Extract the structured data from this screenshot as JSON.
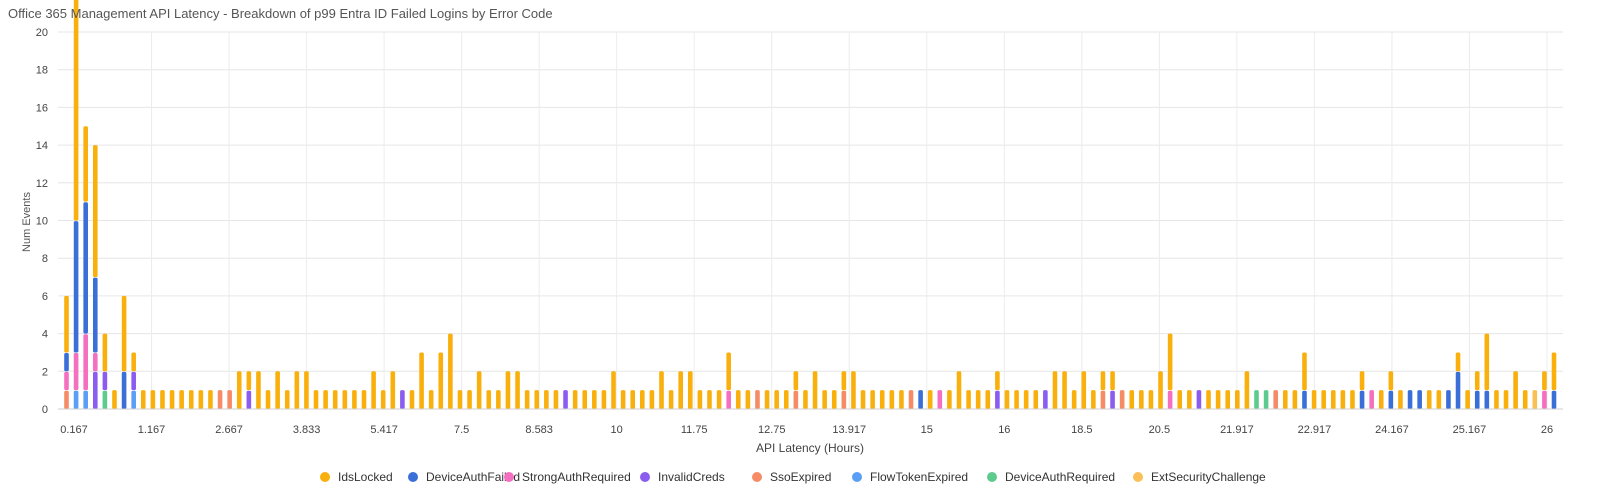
{
  "chart_data": {
    "type": "bar",
    "stacked": true,
    "title": "Office 365 Management API Latency - Breakdown of p99 Entra ID Failed Logins by Error Code",
    "xlabel": "API Latency (Hours)",
    "ylabel": "Num Events",
    "ylim": [
      0,
      20
    ],
    "yticks": [
      0,
      2,
      4,
      6,
      8,
      10,
      12,
      14,
      16,
      18,
      20
    ],
    "xtick_labels": [
      "0.167",
      "1.167",
      "2.667",
      "3.833",
      "5.417",
      "7.5",
      "8.583",
      "10",
      "11.75",
      "12.75",
      "13.917",
      "15",
      "16",
      "18.5",
      "20.5",
      "21.917",
      "22.917",
      "24.167",
      "25.167",
      "26"
    ],
    "grid": true,
    "legend_position": "bottom",
    "series": [
      {
        "name": "IdsLocked",
        "color": "#F9B00C"
      },
      {
        "name": "DeviceAuthFailed",
        "color": "#3A6FD8"
      },
      {
        "name": "StrongAuthRequired",
        "color": "#F56FC0"
      },
      {
        "name": "InvalidCreds",
        "color": "#8A5CF0"
      },
      {
        "name": "SsoExpired",
        "color": "#F58C66"
      },
      {
        "name": "FlowTokenExpired",
        "color": "#5A9EF5"
      },
      {
        "name": "DeviceAuthRequired",
        "color": "#5DCB8E"
      },
      {
        "name": "ExtSecurityChallenge",
        "color": "#FBBF58"
      }
    ],
    "bars": [
      [
        3,
        1,
        1,
        0,
        1,
        0,
        0,
        0
      ],
      [
        12,
        7,
        2,
        0,
        0,
        1,
        0,
        0
      ],
      [
        4,
        7,
        3,
        0,
        0,
        1,
        0,
        0
      ],
      [
        7,
        4,
        1,
        2,
        0,
        0,
        0,
        0
      ],
      [
        2,
        0,
        0,
        1,
        0,
        0,
        1,
        0
      ],
      [
        1,
        0,
        0,
        0,
        0,
        0,
        0,
        0
      ],
      [
        4,
        2,
        0,
        0,
        0,
        0,
        0,
        0
      ],
      [
        1,
        0,
        0,
        1,
        0,
        1,
        0,
        0
      ],
      [
        1,
        0,
        0,
        0,
        0,
        0,
        0,
        0
      ],
      [
        1,
        0,
        0,
        0,
        0,
        0,
        0,
        0
      ],
      [
        1,
        0,
        0,
        0,
        0,
        0,
        0,
        0
      ],
      [
        1,
        0,
        0,
        0,
        0,
        0,
        0,
        0
      ],
      [
        1,
        0,
        0,
        0,
        0,
        0,
        0,
        0
      ],
      [
        1,
        0,
        0,
        0,
        0,
        0,
        0,
        0
      ],
      [
        1,
        0,
        0,
        0,
        0,
        0,
        0,
        0
      ],
      [
        1,
        0,
        0,
        0,
        0,
        0,
        0,
        0
      ],
      [
        0,
        0,
        0,
        0,
        1,
        0,
        0,
        0
      ],
      [
        0,
        0,
        0,
        0,
        1,
        0,
        0,
        0
      ],
      [
        2,
        0,
        0,
        0,
        0,
        0,
        0,
        0
      ],
      [
        1,
        0,
        0,
        1,
        0,
        0,
        0,
        0
      ],
      [
        2,
        0,
        0,
        0,
        0,
        0,
        0,
        0
      ],
      [
        1,
        0,
        0,
        0,
        0,
        0,
        0,
        0
      ],
      [
        2,
        0,
        0,
        0,
        0,
        0,
        0,
        0
      ],
      [
        1,
        0,
        0,
        0,
        0,
        0,
        0,
        0
      ],
      [
        2,
        0,
        0,
        0,
        0,
        0,
        0,
        0
      ],
      [
        2,
        0,
        0,
        0,
        0,
        0,
        0,
        0
      ],
      [
        1,
        0,
        0,
        0,
        0,
        0,
        0,
        0
      ],
      [
        1,
        0,
        0,
        0,
        0,
        0,
        0,
        0
      ],
      [
        1,
        0,
        0,
        0,
        0,
        0,
        0,
        0
      ],
      [
        1,
        0,
        0,
        0,
        0,
        0,
        0,
        0
      ],
      [
        1,
        0,
        0,
        0,
        0,
        0,
        0,
        0
      ],
      [
        1,
        0,
        0,
        0,
        0,
        0,
        0,
        0
      ],
      [
        2,
        0,
        0,
        0,
        0,
        0,
        0,
        0
      ],
      [
        1,
        0,
        0,
        0,
        0,
        0,
        0,
        0
      ],
      [
        2,
        0,
        0,
        0,
        0,
        0,
        0,
        0
      ],
      [
        0,
        0,
        0,
        1,
        0,
        0,
        0,
        0
      ],
      [
        1,
        0,
        0,
        0,
        0,
        0,
        0,
        0
      ],
      [
        3,
        0,
        0,
        0,
        0,
        0,
        0,
        0
      ],
      [
        1,
        0,
        0,
        0,
        0,
        0,
        0,
        0
      ],
      [
        3,
        0,
        0,
        0,
        0,
        0,
        0,
        0
      ],
      [
        4,
        0,
        0,
        0,
        0,
        0,
        0,
        0
      ],
      [
        1,
        0,
        0,
        0,
        0,
        0,
        0,
        0
      ],
      [
        1,
        0,
        0,
        0,
        0,
        0,
        0,
        0
      ],
      [
        2,
        0,
        0,
        0,
        0,
        0,
        0,
        0
      ],
      [
        1,
        0,
        0,
        0,
        0,
        0,
        0,
        0
      ],
      [
        1,
        0,
        0,
        0,
        0,
        0,
        0,
        0
      ],
      [
        2,
        0,
        0,
        0,
        0,
        0,
        0,
        0
      ],
      [
        2,
        0,
        0,
        0,
        0,
        0,
        0,
        0
      ],
      [
        1,
        0,
        0,
        0,
        0,
        0,
        0,
        0
      ],
      [
        1,
        0,
        0,
        0,
        0,
        0,
        0,
        0
      ],
      [
        1,
        0,
        0,
        0,
        0,
        0,
        0,
        0
      ],
      [
        1,
        0,
        0,
        0,
        0,
        0,
        0,
        0
      ],
      [
        0,
        0,
        0,
        1,
        0,
        0,
        0,
        0
      ],
      [
        1,
        0,
        0,
        0,
        0,
        0,
        0,
        0
      ],
      [
        1,
        0,
        0,
        0,
        0,
        0,
        0,
        0
      ],
      [
        1,
        0,
        0,
        0,
        0,
        0,
        0,
        0
      ],
      [
        1,
        0,
        0,
        0,
        0,
        0,
        0,
        0
      ],
      [
        2,
        0,
        0,
        0,
        0,
        0,
        0,
        0
      ],
      [
        1,
        0,
        0,
        0,
        0,
        0,
        0,
        0
      ],
      [
        1,
        0,
        0,
        0,
        0,
        0,
        0,
        0
      ],
      [
        1,
        0,
        0,
        0,
        0,
        0,
        0,
        0
      ],
      [
        1,
        0,
        0,
        0,
        0,
        0,
        0,
        0
      ],
      [
        2,
        0,
        0,
        0,
        0,
        0,
        0,
        0
      ],
      [
        1,
        0,
        0,
        0,
        0,
        0,
        0,
        0
      ],
      [
        2,
        0,
        0,
        0,
        0,
        0,
        0,
        0
      ],
      [
        2,
        0,
        0,
        0,
        0,
        0,
        0,
        0
      ],
      [
        1,
        0,
        0,
        0,
        0,
        0,
        0,
        0
      ],
      [
        1,
        0,
        0,
        0,
        0,
        0,
        0,
        0
      ],
      [
        1,
        0,
        0,
        0,
        0,
        0,
        0,
        0
      ],
      [
        2,
        0,
        1,
        0,
        0,
        0,
        0,
        0
      ],
      [
        1,
        0,
        0,
        0,
        0,
        0,
        0,
        0
      ],
      [
        1,
        0,
        0,
        0,
        0,
        0,
        0,
        0
      ],
      [
        0,
        0,
        0,
        0,
        1,
        0,
        0,
        0
      ],
      [
        1,
        0,
        0,
        0,
        0,
        0,
        0,
        0
      ],
      [
        1,
        0,
        0,
        0,
        0,
        0,
        0,
        0
      ],
      [
        1,
        0,
        0,
        0,
        0,
        0,
        0,
        0
      ],
      [
        1,
        0,
        0,
        0,
        1,
        0,
        0,
        0
      ],
      [
        1,
        0,
        0,
        0,
        0,
        0,
        0,
        0
      ],
      [
        2,
        0,
        0,
        0,
        0,
        0,
        0,
        0
      ],
      [
        1,
        0,
        0,
        0,
        0,
        0,
        0,
        0
      ],
      [
        1,
        0,
        0,
        0,
        0,
        0,
        0,
        0
      ],
      [
        1,
        0,
        0,
        0,
        1,
        0,
        0,
        0
      ],
      [
        2,
        0,
        0,
        0,
        0,
        0,
        0,
        0
      ],
      [
        1,
        0,
        0,
        0,
        0,
        0,
        0,
        0
      ],
      [
        1,
        0,
        0,
        0,
        0,
        0,
        0,
        0
      ],
      [
        1,
        0,
        0,
        0,
        0,
        0,
        0,
        0
      ],
      [
        1,
        0,
        0,
        0,
        0,
        0,
        0,
        0
      ],
      [
        1,
        0,
        0,
        0,
        0,
        0,
        0,
        0
      ],
      [
        0,
        0,
        0,
        0,
        1,
        0,
        0,
        0
      ],
      [
        0,
        1,
        0,
        0,
        0,
        0,
        0,
        0
      ],
      [
        1,
        0,
        0,
        0,
        0,
        0,
        0,
        0
      ],
      [
        0,
        0,
        1,
        0,
        0,
        0,
        0,
        0
      ],
      [
        1,
        0,
        0,
        0,
        0,
        0,
        0,
        0
      ],
      [
        2,
        0,
        0,
        0,
        0,
        0,
        0,
        0
      ],
      [
        1,
        0,
        0,
        0,
        0,
        0,
        0,
        0
      ],
      [
        1,
        0,
        0,
        0,
        0,
        0,
        0,
        0
      ],
      [
        1,
        0,
        0,
        0,
        0,
        0,
        0,
        0
      ],
      [
        1,
        0,
        0,
        1,
        0,
        0,
        0,
        0
      ],
      [
        1,
        0,
        0,
        0,
        0,
        0,
        0,
        0
      ],
      [
        1,
        0,
        0,
        0,
        0,
        0,
        0,
        0
      ],
      [
        1,
        0,
        0,
        0,
        0,
        0,
        0,
        0
      ],
      [
        1,
        0,
        0,
        0,
        0,
        0,
        0,
        0
      ],
      [
        0,
        0,
        0,
        1,
        0,
        0,
        0,
        0
      ],
      [
        2,
        0,
        0,
        0,
        0,
        0,
        0,
        0
      ],
      [
        2,
        0,
        0,
        0,
        0,
        0,
        0,
        0
      ],
      [
        1,
        0,
        0,
        0,
        0,
        0,
        0,
        0
      ],
      [
        2,
        0,
        0,
        0,
        0,
        0,
        0,
        0
      ],
      [
        1,
        0,
        0,
        0,
        0,
        0,
        0,
        0
      ],
      [
        1,
        0,
        0,
        0,
        1,
        0,
        0,
        0
      ],
      [
        1,
        0,
        0,
        1,
        0,
        0,
        0,
        0
      ],
      [
        0,
        0,
        0,
        0,
        1,
        0,
        0,
        0
      ],
      [
        1,
        0,
        0,
        0,
        0,
        0,
        0,
        0
      ],
      [
        1,
        0,
        0,
        0,
        0,
        0,
        0,
        0
      ],
      [
        1,
        0,
        0,
        0,
        0,
        0,
        0,
        0
      ],
      [
        2,
        0,
        0,
        0,
        0,
        0,
        0,
        0
      ],
      [
        3,
        0,
        1,
        0,
        0,
        0,
        0,
        0
      ],
      [
        1,
        0,
        0,
        0,
        0,
        0,
        0,
        0
      ],
      [
        1,
        0,
        0,
        0,
        0,
        0,
        0,
        0
      ],
      [
        0,
        0,
        0,
        1,
        0,
        0,
        0,
        0
      ],
      [
        1,
        0,
        0,
        0,
        0,
        0,
        0,
        0
      ],
      [
        1,
        0,
        0,
        0,
        0,
        0,
        0,
        0
      ],
      [
        1,
        0,
        0,
        0,
        0,
        0,
        0,
        0
      ],
      [
        1,
        0,
        0,
        0,
        0,
        0,
        0,
        0
      ],
      [
        2,
        0,
        0,
        0,
        0,
        0,
        0,
        0
      ],
      [
        0,
        0,
        0,
        0,
        0,
        0,
        1,
        0
      ],
      [
        0,
        0,
        0,
        0,
        0,
        0,
        1,
        0
      ],
      [
        0,
        0,
        0,
        0,
        1,
        0,
        0,
        0
      ],
      [
        1,
        0,
        0,
        0,
        0,
        0,
        0,
        0
      ],
      [
        1,
        0,
        0,
        0,
        0,
        0,
        0,
        0
      ],
      [
        2,
        1,
        0,
        0,
        0,
        0,
        0,
        0
      ],
      [
        1,
        0,
        0,
        0,
        0,
        0,
        0,
        0
      ],
      [
        1,
        0,
        0,
        0,
        0,
        0,
        0,
        0
      ],
      [
        1,
        0,
        0,
        0,
        0,
        0,
        0,
        0
      ],
      [
        1,
        0,
        0,
        0,
        0,
        0,
        0,
        0
      ],
      [
        1,
        0,
        0,
        0,
        0,
        0,
        0,
        0
      ],
      [
        1,
        1,
        0,
        0,
        0,
        0,
        0,
        0
      ],
      [
        0,
        0,
        1,
        0,
        0,
        0,
        0,
        0
      ],
      [
        1,
        0,
        0,
        0,
        0,
        0,
        0,
        0
      ],
      [
        1,
        1,
        0,
        0,
        0,
        0,
        0,
        0
      ],
      [
        1,
        0,
        0,
        0,
        0,
        0,
        0,
        0
      ],
      [
        0,
        1,
        0,
        0,
        0,
        0,
        0,
        0
      ],
      [
        0,
        1,
        0,
        0,
        0,
        0,
        0,
        0
      ],
      [
        1,
        0,
        0,
        0,
        0,
        0,
        0,
        0
      ],
      [
        1,
        0,
        0,
        0,
        0,
        0,
        0,
        0
      ],
      [
        0,
        1,
        0,
        0,
        0,
        0,
        0,
        0
      ],
      [
        1,
        2,
        0,
        0,
        0,
        0,
        0,
        0
      ],
      [
        1,
        0,
        0,
        0,
        0,
        0,
        0,
        0
      ],
      [
        1,
        1,
        0,
        0,
        0,
        0,
        0,
        0
      ],
      [
        3,
        1,
        0,
        0,
        0,
        0,
        0,
        0
      ],
      [
        1,
        0,
        0,
        0,
        0,
        0,
        0,
        0
      ],
      [
        1,
        0,
        0,
        0,
        0,
        0,
        0,
        0
      ],
      [
        2,
        0,
        0,
        0,
        0,
        0,
        0,
        0
      ],
      [
        1,
        0,
        0,
        0,
        0,
        0,
        0,
        0
      ],
      [
        0,
        0,
        0,
        0,
        0,
        0,
        0,
        1
      ],
      [
        1,
        0,
        1,
        0,
        0,
        0,
        0,
        0
      ],
      [
        2,
        1,
        0,
        0,
        0,
        0,
        0,
        0
      ]
    ]
  }
}
